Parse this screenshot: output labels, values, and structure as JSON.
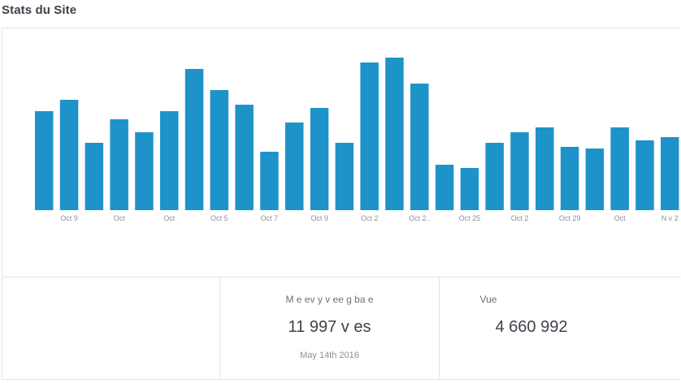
{
  "widget": {
    "title": "Stats du Site"
  },
  "chart_data": {
    "type": "bar",
    "bar_color": "#1e93c9",
    "values": [
      122,
      136,
      83,
      112,
      96,
      122,
      174,
      148,
      130,
      72,
      108,
      126,
      83,
      182,
      188,
      156,
      56,
      52,
      83,
      96,
      102,
      78,
      76,
      102,
      86,
      90
    ],
    "tick_labels": [
      "Oct 9",
      "Oct",
      "Oct",
      "Oct  5",
      "Oct  7",
      "Oct  9",
      "Oct 2",
      "Oct 2..",
      "Oct 25",
      "Oct 2",
      "Oct 29",
      "Oct",
      "N v 2"
    ],
    "tick_positions": [
      1,
      3,
      5,
      7,
      9,
      11,
      13,
      15,
      17,
      19,
      21,
      23,
      25
    ],
    "ylim": [
      0,
      200
    ],
    "grid": false
  },
  "stats": {
    "best": {
      "label": "M e   ev y  v  ee g   ba e",
      "value": "11 997  v   es",
      "date": "May 14th 2016"
    },
    "views": {
      "label": "Vue",
      "value": "4 660 992"
    }
  }
}
